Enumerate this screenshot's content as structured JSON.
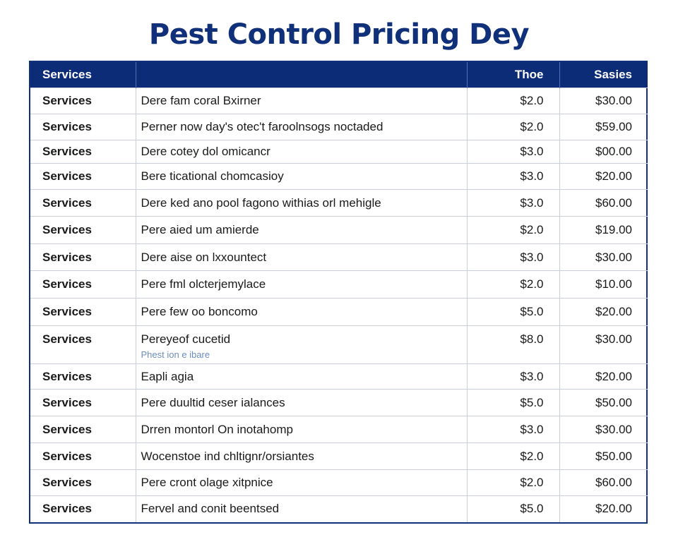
{
  "title": "Pest Control Pricing Dey",
  "table": {
    "headers": [
      "Services",
      "",
      "Thoe",
      "Sasies"
    ],
    "rows": [
      {
        "service": "Services",
        "desc": "Dere fam coral Bxirner",
        "sub": "",
        "price": "$2.0",
        "total": "$30.00"
      },
      {
        "service": "Services",
        "desc": "Perner now day's otec't faroolnsogs noctaded",
        "sub": "",
        "price": "$2.0",
        "total": "$59.00"
      },
      {
        "service": "Services",
        "desc": "Dere cotey dol omicancr",
        "sub": "",
        "price": "$3.0",
        "total": "$00.00"
      },
      {
        "service": "Services",
        "desc": "Bere ticational chomcasioy",
        "sub": "",
        "price": "$3.0",
        "total": "$20.00"
      },
      {
        "service": "Services",
        "desc": "Dere ked ano pool fagono withias orl mehigle",
        "sub": "",
        "price": "$3.0",
        "total": "$60.00"
      },
      {
        "service": "Services",
        "desc": "Pere aied um amierde",
        "sub": "",
        "price": "$2.0",
        "total": "$19.00"
      },
      {
        "service": "Services",
        "desc": "Dere aise on lxxountect",
        "sub": "",
        "price": "$3.0",
        "total": "$30.00"
      },
      {
        "service": "Services",
        "desc": "Pere fml olcterjemylace",
        "sub": "",
        "price": "$2.0",
        "total": "$10.00"
      },
      {
        "service": "Services",
        "desc": "Pere few oo boncomo",
        "sub": "",
        "price": "$5.0",
        "total": "$20.00"
      },
      {
        "service": "Services",
        "desc": "Pereyeof cucetid",
        "sub": "Phest ion e ibare",
        "price": "$8.0",
        "total": "$30.00"
      },
      {
        "service": "Services",
        "desc": "Eapli agia",
        "sub": "",
        "price": "$3.0",
        "total": "$20.00"
      },
      {
        "service": "Services",
        "desc": "Pere duultid ceser ialances",
        "sub": "",
        "price": "$5.0",
        "total": "$50.00"
      },
      {
        "service": "Services",
        "desc": "Drren montorl On inotahomp",
        "sub": "",
        "price": "$3.0",
        "total": "$30.00"
      },
      {
        "service": "Services",
        "desc": "Wocenstoe ind chltignr/orsiantes",
        "sub": "",
        "price": "$2.0",
        "total": "$50.00"
      },
      {
        "service": "Services",
        "desc": "Pere cront olage xitpnice",
        "sub": "",
        "price": "$2.0",
        "total": "$60.00"
      },
      {
        "service": "Services",
        "desc": "Fervel and conit beentsed",
        "sub": "",
        "price": "$5.0",
        "total": "$20.00"
      }
    ]
  }
}
